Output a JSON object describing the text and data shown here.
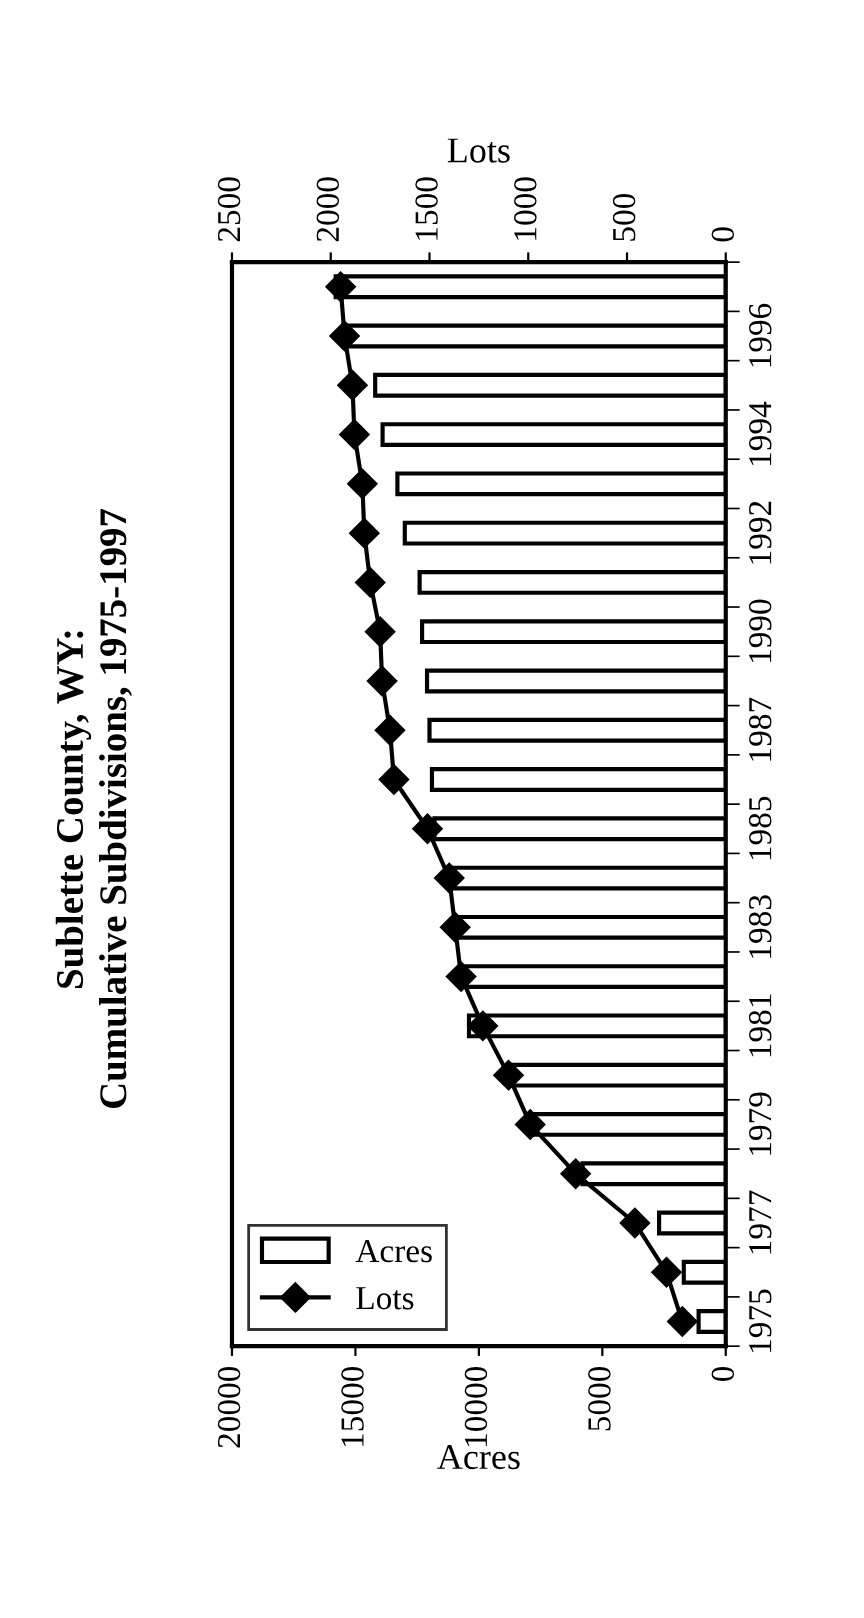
{
  "chart_data": {
    "type": "bar",
    "orientation": "horizontal",
    "title": "Sublette County, WY:",
    "subtitle": "Cumulative Subdivisions, 1975-1997",
    "xlabel": "Acres",
    "x2label": "Lots",
    "categories": [
      null,
      "1996",
      null,
      "1994",
      null,
      "1992",
      null,
      "1990",
      null,
      "1987",
      null,
      "1985",
      null,
      "1983",
      null,
      "1981",
      null,
      "1979",
      null,
      "1977",
      null,
      "1975"
    ],
    "series": [
      {
        "name": "Acres",
        "color": "#ffffff",
        "values": [
          15800,
          15500,
          14200,
          13900,
          13300,
          13000,
          12400,
          12300,
          12100,
          12000,
          11900,
          11800,
          11000,
          10900,
          10600,
          10400,
          8700,
          7800,
          5800,
          2700,
          1700,
          1100
        ]
      },
      {
        "name": "Lots",
        "type": "line",
        "axis": "x2",
        "color": "#000000",
        "marker": "diamond",
        "values": [
          1950,
          1930,
          1890,
          1880,
          1840,
          1830,
          1800,
          1750,
          1740,
          1700,
          1680,
          1510,
          1400,
          1370,
          1340,
          1230,
          1100,
          990,
          760,
          460,
          300,
          220
        ]
      }
    ],
    "xlim": [
      20000,
      0
    ],
    "xticks": [
      0,
      5000,
      10000,
      15000,
      20000
    ],
    "x2lim": [
      2500,
      0
    ],
    "x2ticks": [
      0,
      500,
      1000,
      1500,
      2000,
      2500
    ],
    "legend": "bottom left",
    "grid": false
  }
}
